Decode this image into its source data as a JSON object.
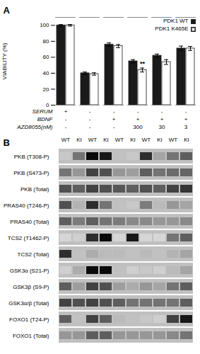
{
  "chart_data": [
    {
      "type": "bar",
      "title": "A",
      "ylabel": "VIABILITY (%)",
      "categories": [
        null,
        null,
        null,
        null,
        null,
        null
      ],
      "series": [
        {
          "name": "PDK1 WT",
          "color": "#1a1a1a",
          "values": [
            100,
            40,
            76,
            55,
            62,
            71
          ],
          "errors": [
            1.0,
            1.5,
            2.0,
            2.0,
            2.0,
            3.0
          ]
        },
        {
          "name": "PDK1 K465E",
          "color": "#ffffff",
          "edge_color": "#1a1a1a",
          "values": [
            100,
            39,
            74,
            44,
            54,
            71
          ],
          "errors": [
            1.0,
            1.5,
            2.0,
            2.5,
            3.0,
            2.5
          ]
        }
      ],
      "ylim": [
        0,
        110
      ],
      "yticks": [
        0,
        20,
        40,
        60,
        80,
        100
      ],
      "legend": "upper right",
      "annotations": [
        {
          "text": "**",
          "category": 3,
          "series": "PDK1 K465E"
        }
      ],
      "condition_rows": [
        {
          "name": "SERUM",
          "labels": [
            "+",
            "-",
            "-",
            "-",
            "-",
            "-"
          ]
        },
        {
          "name": "BDNF",
          "labels": [
            "-",
            "-",
            "+",
            "+",
            "+",
            "+"
          ]
        },
        {
          "name": "AZD8055(nM)",
          "labels": [
            "-",
            "-",
            "-",
            "300",
            "30",
            "3"
          ]
        }
      ]
    },
    {
      "type": "heatmap",
      "title": "B",
      "x": [
        "WT",
        "KI",
        "WT",
        "KI",
        "WT",
        "KI",
        "WT",
        "KI",
        "WT",
        "KI"
      ],
      "y": [
        "PKB (T308-P)",
        "PKB (S473-P)",
        "PKB (Total)",
        "PRAS40 (T246-P)",
        "PRAS40 (Total)",
        "TCS2 (T1462-P)",
        "TCS2 (Total)",
        "GSK3α (S21-P)",
        "GSK3β (S9-P)",
        "GSK3α/β (Total)",
        "FOXO1 (T24-P)",
        "FOXO1 (Total)"
      ],
      "values": [
        [
          0.3,
          1.5,
          3.0,
          2.8,
          0.4,
          0.3,
          2.5,
          0.8,
          1.5,
          1.8
        ],
        [
          1.5,
          1.0,
          2.2,
          2.0,
          1.0,
          0.9,
          1.8,
          1.5,
          1.6,
          1.7
        ],
        [
          2.0,
          1.8,
          2.2,
          2.0,
          1.9,
          1.8,
          2.0,
          1.8,
          2.2,
          2.4
        ],
        [
          2.0,
          0.6,
          2.5,
          1.5,
          0.4,
          0.3,
          1.4,
          0.5,
          1.0,
          0.8
        ],
        [
          1.8,
          1.4,
          1.8,
          1.5,
          1.4,
          1.2,
          1.2,
          1.0,
          1.0,
          1.2
        ],
        [
          0.1,
          0.2,
          2.5,
          3.0,
          0.1,
          2.8,
          0.1,
          0.1,
          1.5,
          1.8
        ],
        [
          2.5,
          0.4,
          0.7,
          0.5,
          0.5,
          0.4,
          0.5,
          0.4,
          0.6,
          0.8
        ],
        [
          0.2,
          0.7,
          3.0,
          3.0,
          0.4,
          0.2,
          0.3,
          0.2,
          0.5,
          0.8
        ],
        [
          1.8,
          0.9,
          2.2,
          2.0,
          0.9,
          0.7,
          1.0,
          0.8,
          1.5,
          1.8
        ],
        [
          2.2,
          2.0,
          2.2,
          2.0,
          1.8,
          1.5,
          1.5,
          1.5,
          1.5,
          1.8
        ],
        [
          1.8,
          0.4,
          2.2,
          1.8,
          0.5,
          0.4,
          0.3,
          0.2,
          2.2,
          2.8
        ],
        [
          1.0,
          1.0,
          1.8,
          1.8,
          1.0,
          1.0,
          1.0,
          1.0,
          1.2,
          1.5
        ]
      ]
    }
  ]
}
